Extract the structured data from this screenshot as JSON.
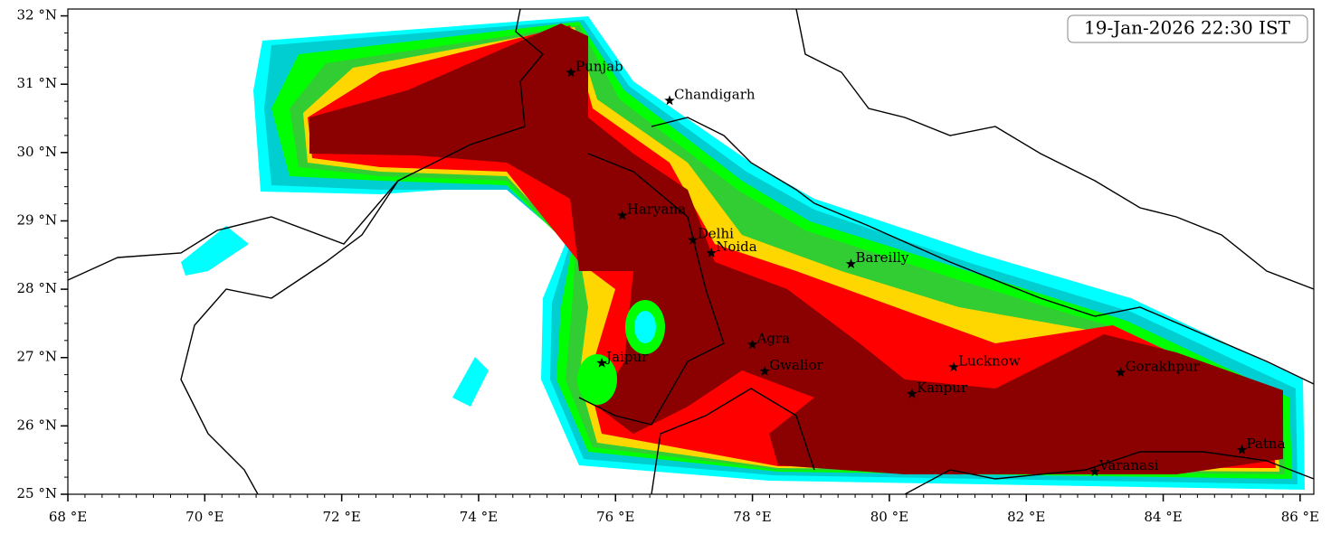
{
  "map": {
    "title": "19-Jan-2026 22:30 IST",
    "xlim": [
      68,
      86.2
    ],
    "ylim": [
      25,
      32.1
    ],
    "xticks": [
      {
        "value": 68,
        "label": "68 °E"
      },
      {
        "value": 70,
        "label": "70 °E"
      },
      {
        "value": 72,
        "label": "72 °E"
      },
      {
        "value": 74,
        "label": "74 °E"
      },
      {
        "value": 76,
        "label": "76 °E"
      },
      {
        "value": 78,
        "label": "78 °E"
      },
      {
        "value": 80,
        "label": "80 °E"
      },
      {
        "value": 82,
        "label": "82 °E"
      },
      {
        "value": 84,
        "label": "84 °E"
      },
      {
        "value": 86,
        "label": "86 °E"
      }
    ],
    "yticks": [
      {
        "value": 25,
        "label": "25 °N"
      },
      {
        "value": 26,
        "label": "26 °N"
      },
      {
        "value": 27,
        "label": "27 °N"
      },
      {
        "value": 28,
        "label": "28 °N"
      },
      {
        "value": 29,
        "label": "29 °N"
      },
      {
        "value": 30,
        "label": "30 °N"
      },
      {
        "value": 31,
        "label": "31 °N"
      },
      {
        "value": 32,
        "label": "32 °N"
      }
    ],
    "cities": [
      {
        "name": "Punjab",
        "lon": 75.35,
        "lat": 31.17
      },
      {
        "name": "Chandigarh",
        "lon": 76.79,
        "lat": 30.76
      },
      {
        "name": "Haryana",
        "lon": 76.1,
        "lat": 29.08
      },
      {
        "name": "Delhi",
        "lon": 77.13,
        "lat": 28.72
      },
      {
        "name": "Noida",
        "lon": 77.4,
        "lat": 28.53
      },
      {
        "name": "Bareilly",
        "lon": 79.44,
        "lat": 28.37
      },
      {
        "name": "Agra",
        "lon": 78.0,
        "lat": 27.19
      },
      {
        "name": "Jaipur",
        "lon": 75.8,
        "lat": 26.92
      },
      {
        "name": "Gwalior",
        "lon": 78.18,
        "lat": 26.8
      },
      {
        "name": "Lucknow",
        "lon": 80.94,
        "lat": 26.86
      },
      {
        "name": "Gorakhpur",
        "lon": 83.38,
        "lat": 26.78
      },
      {
        "name": "Kanpur",
        "lon": 80.33,
        "lat": 26.47
      },
      {
        "name": "Varanasi",
        "lon": 83.0,
        "lat": 25.33
      },
      {
        "name": "Patna",
        "lon": 85.15,
        "lat": 25.65
      }
    ]
  }
}
